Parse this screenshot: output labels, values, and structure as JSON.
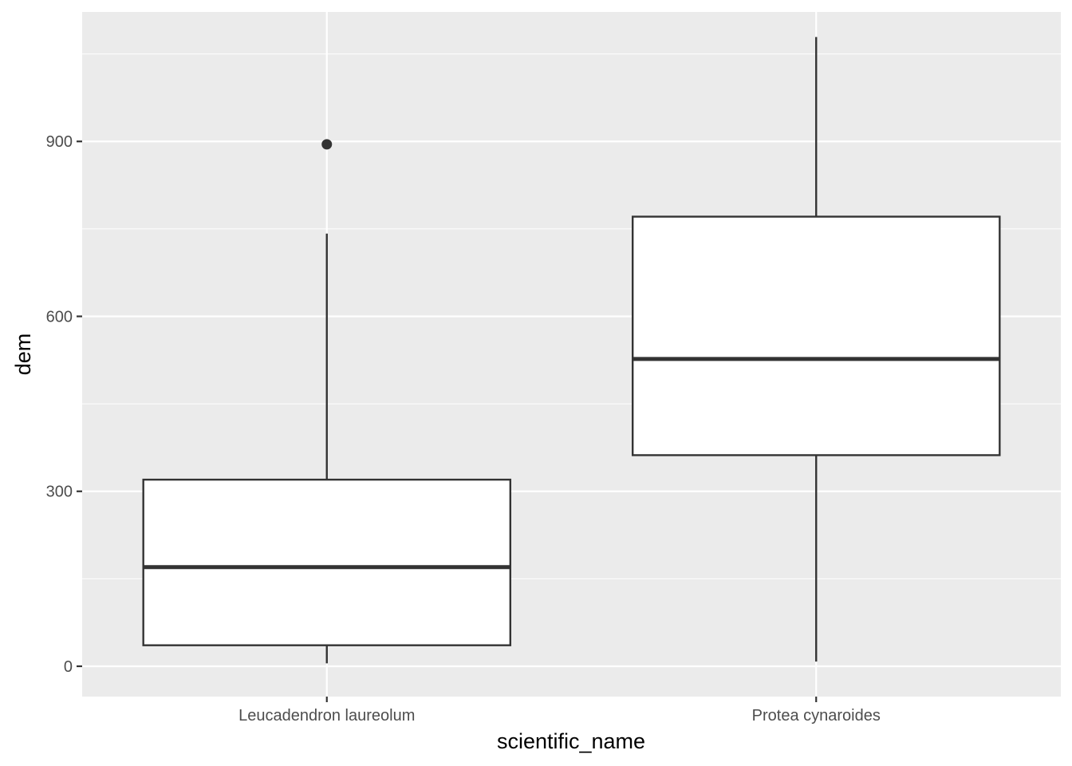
{
  "chart_data": {
    "type": "boxplot",
    "title": "",
    "xlabel": "scientific_name",
    "ylabel": "dem",
    "ylim": [
      -52,
      1122
    ],
    "yticks": [
      0,
      300,
      600,
      900
    ],
    "ytick_labels": [
      "0",
      "300",
      "600",
      "900"
    ],
    "categories": [
      "Leucadendron laureolum",
      "Protea cynaroides"
    ],
    "boxes": [
      {
        "category": "Leucadendron laureolum",
        "lower_whisker": 5,
        "q1": 36,
        "median": 170,
        "q3": 320,
        "upper_whisker": 742,
        "outliers": [
          895
        ]
      },
      {
        "category": "Protea cynaroides",
        "lower_whisker": 8,
        "q1": 362,
        "median": 527,
        "q3": 771,
        "upper_whisker": 1079,
        "outliers": []
      }
    ],
    "grid": true,
    "legend": "none",
    "colors": {
      "panel": "#ebebeb",
      "grid": "#ffffff",
      "box_fill": "#ffffff",
      "box_line": "#333333",
      "tick_text": "#4d4d4d"
    }
  }
}
